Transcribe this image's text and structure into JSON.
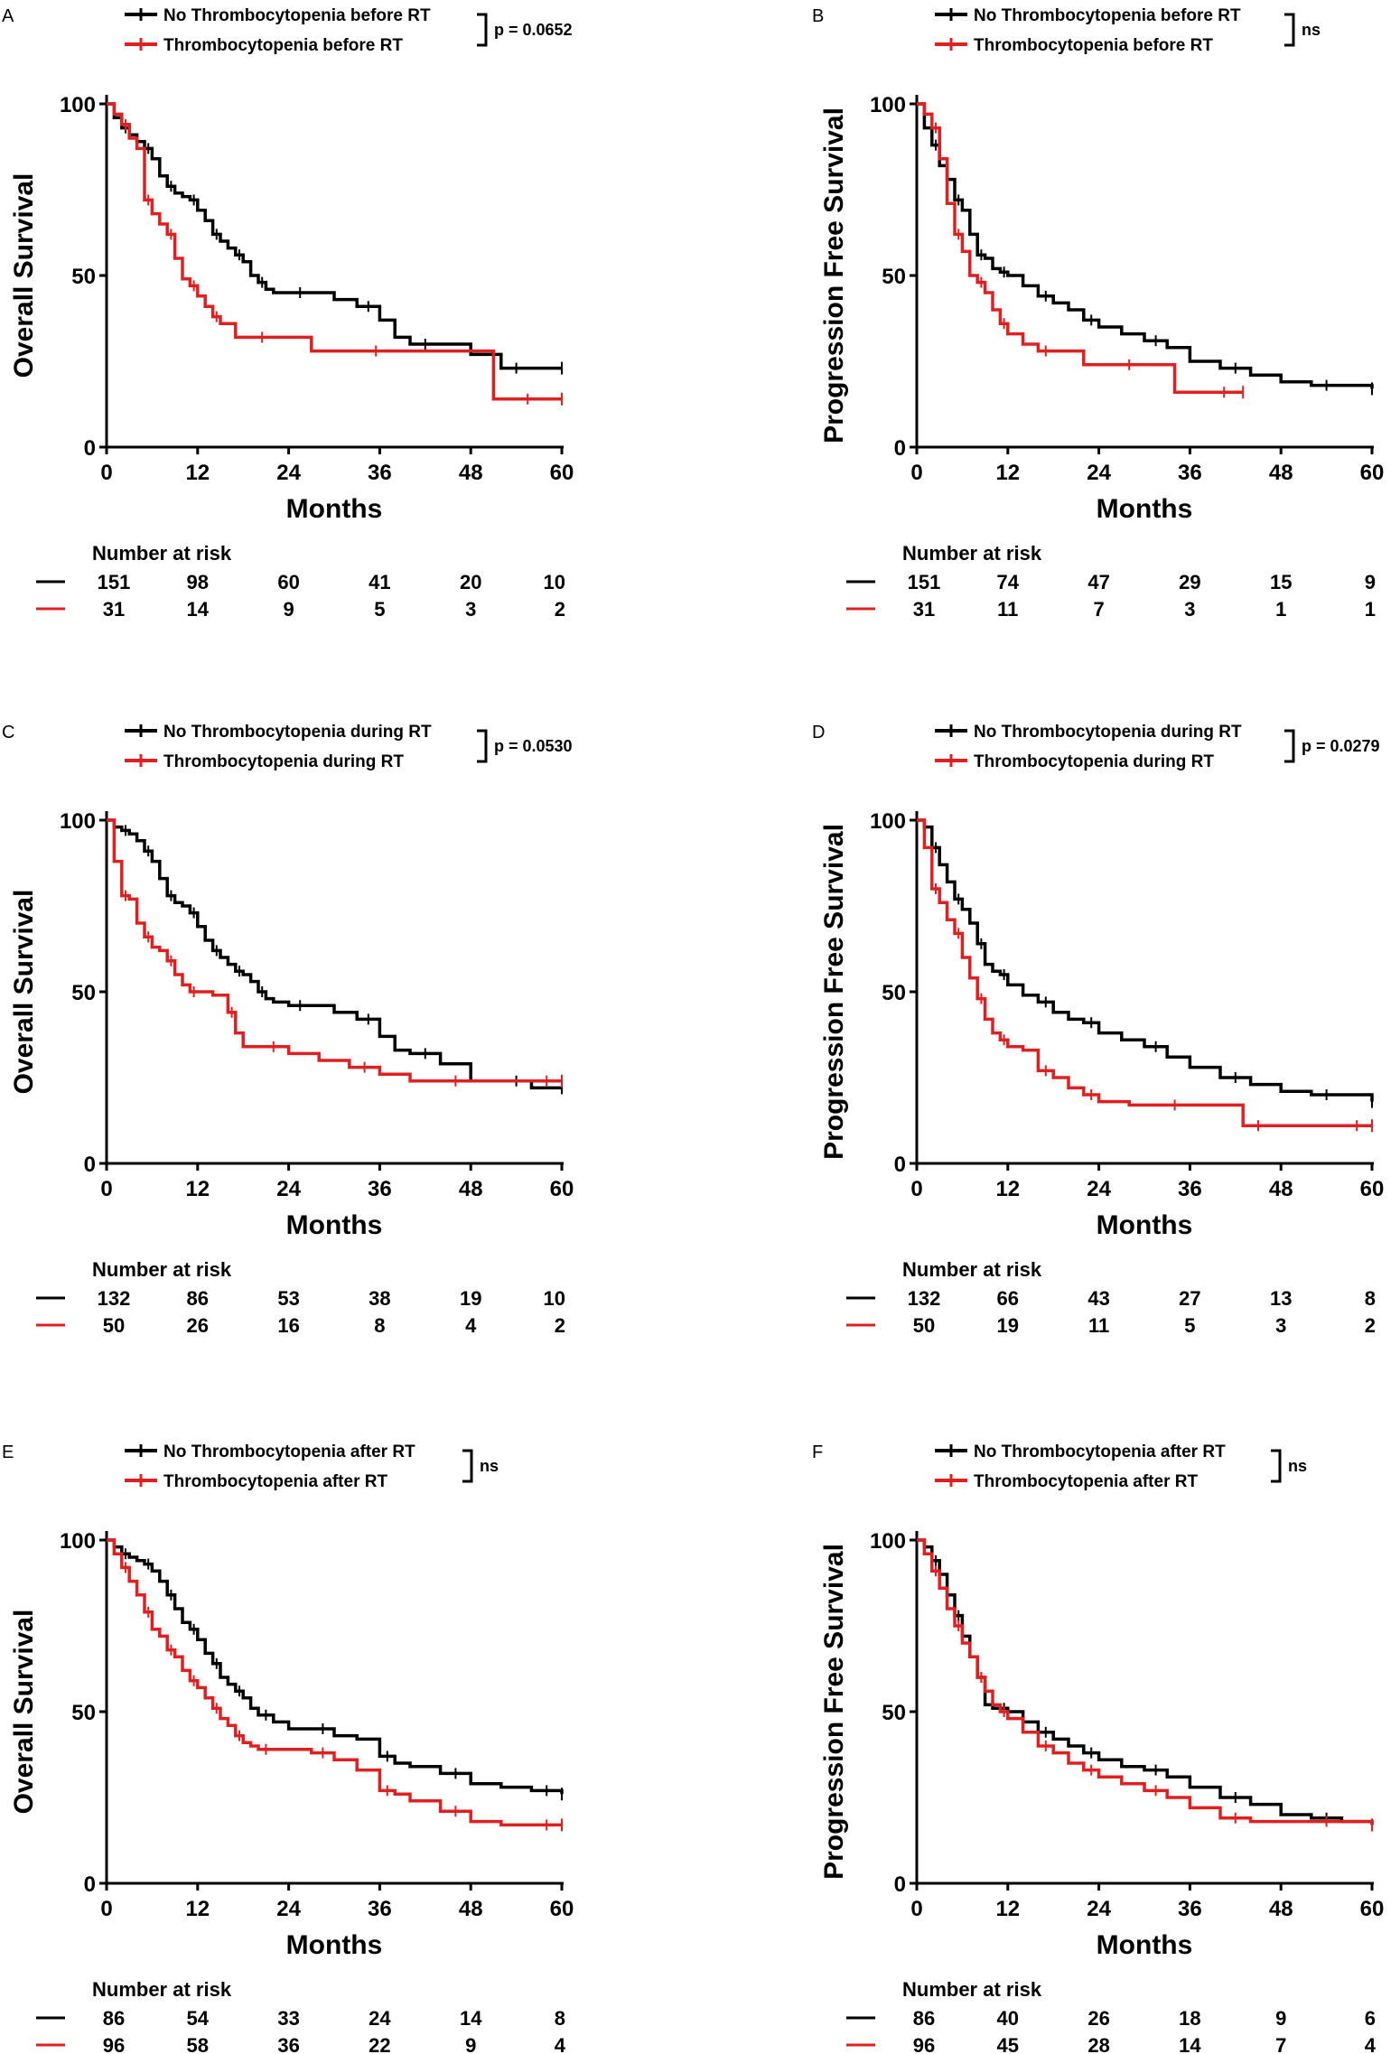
{
  "colors": {
    "no_group": "#000000",
    "group": "#e02020"
  },
  "x_ticks": [
    0,
    12,
    24,
    36,
    48,
    60
  ],
  "y_ticks": [
    0,
    50,
    100
  ],
  "xlabel": "Months",
  "risk_title": "Number at risk",
  "chart_data": [
    {
      "type": "line",
      "panel": "A",
      "ylabel": "Overall Survival",
      "xlim": [
        0,
        60
      ],
      "ylim": [
        0,
        100
      ],
      "legend": [
        "No Thrombocytopenia before RT",
        "Thrombocytopenia before RT"
      ],
      "p_value": "p = 0.0652",
      "series": [
        {
          "name": "No Thrombocytopenia before RT",
          "x": [
            0,
            1,
            2,
            3,
            4,
            5,
            6,
            7,
            8,
            9,
            10,
            11,
            12,
            13,
            14,
            15,
            16,
            17,
            18,
            19,
            20,
            21,
            22,
            24,
            27,
            30,
            33,
            36,
            38,
            40,
            44,
            48,
            52,
            56,
            60
          ],
          "y": [
            100,
            96,
            93,
            91,
            89,
            87,
            84,
            79,
            76,
            74,
            73,
            72,
            69,
            66,
            62,
            60,
            58,
            56,
            54,
            50,
            48,
            46,
            45,
            45,
            45,
            43,
            41,
            37,
            32,
            30,
            30,
            27,
            23,
            23,
            23
          ]
        },
        {
          "name": "Thrombocytopenia before RT",
          "x": [
            0,
            1,
            2,
            3,
            4,
            5,
            6,
            7,
            8,
            9,
            10,
            11,
            12,
            13,
            14,
            15,
            17,
            19,
            22,
            27,
            33,
            38,
            44,
            51,
            60
          ],
          "y": [
            100,
            97,
            94,
            90,
            87,
            72,
            68,
            65,
            62,
            55,
            49,
            47,
            44,
            41,
            38,
            36,
            32,
            32,
            32,
            28,
            28,
            28,
            28,
            14,
            14
          ]
        }
      ],
      "risk": {
        "times": [
          0,
          12,
          24,
          36,
          48,
          60
        ],
        "no_group": [
          151,
          98,
          60,
          41,
          20,
          10
        ],
        "group": [
          31,
          14,
          9,
          5,
          3,
          2
        ]
      }
    },
    {
      "type": "line",
      "panel": "B",
      "ylabel": "Progression Free Survival",
      "xlim": [
        0,
        60
      ],
      "ylim": [
        0,
        100
      ],
      "legend": [
        "No Thrombocytopenia before RT",
        "Thrombocytopenia before RT"
      ],
      "p_value": "ns",
      "series": [
        {
          "name": "No Thrombocytopenia before RT",
          "x": [
            0,
            1,
            2,
            3,
            4,
            5,
            6,
            7,
            8,
            9,
            10,
            11,
            12,
            14,
            16,
            18,
            20,
            22,
            24,
            27,
            30,
            33,
            36,
            40,
            44,
            48,
            52,
            56,
            60
          ],
          "y": [
            100,
            93,
            88,
            82,
            78,
            72,
            69,
            62,
            56,
            55,
            52,
            51,
            50,
            47,
            44,
            42,
            40,
            37,
            35,
            33,
            31,
            29,
            25,
            23,
            21,
            19,
            18,
            18,
            17
          ]
        },
        {
          "name": "Thrombocytopenia before RT",
          "x": [
            0,
            1,
            2,
            3,
            4,
            5,
            6,
            7,
            8,
            9,
            10,
            11,
            12,
            14,
            16,
            18,
            22,
            26,
            30,
            34,
            38,
            43
          ],
          "y": [
            100,
            97,
            93,
            84,
            71,
            62,
            57,
            50,
            48,
            45,
            40,
            36,
            33,
            30,
            28,
            28,
            24,
            24,
            24,
            16,
            16,
            16
          ]
        }
      ],
      "risk": {
        "times": [
          0,
          12,
          24,
          36,
          48,
          60
        ],
        "no_group": [
          151,
          74,
          47,
          29,
          15,
          9
        ],
        "group": [
          31,
          11,
          7,
          3,
          1,
          1
        ]
      }
    },
    {
      "type": "line",
      "panel": "C",
      "ylabel": "Overall Survival",
      "xlim": [
        0,
        60
      ],
      "ylim": [
        0,
        100
      ],
      "legend": [
        "No Thrombocytopenia during RT",
        "Thrombocytopenia during RT"
      ],
      "p_value": "p = 0.0530",
      "series": [
        {
          "name": "No Thrombocytopenia during RT",
          "x": [
            0,
            1,
            2,
            3,
            4,
            5,
            6,
            7,
            8,
            9,
            10,
            11,
            12,
            13,
            14,
            15,
            16,
            17,
            18,
            19,
            20,
            21,
            22,
            24,
            27,
            30,
            33,
            36,
            38,
            40,
            44,
            48,
            52,
            56,
            60
          ],
          "y": [
            100,
            98,
            97,
            96,
            94,
            91,
            88,
            83,
            78,
            76,
            75,
            73,
            69,
            65,
            62,
            60,
            58,
            56,
            55,
            53,
            50,
            48,
            47,
            46,
            46,
            44,
            42,
            37,
            33,
            32,
            29,
            24,
            24,
            22,
            22
          ]
        },
        {
          "name": "Thrombocytopenia during RT",
          "x": [
            0,
            1,
            2,
            3,
            4,
            5,
            6,
            7,
            8,
            9,
            10,
            11,
            12,
            14,
            16,
            17,
            18,
            20,
            24,
            28,
            32,
            36,
            40,
            44,
            48,
            52,
            56,
            60
          ],
          "y": [
            100,
            88,
            78,
            77,
            70,
            66,
            63,
            62,
            59,
            55,
            52,
            50,
            50,
            49,
            44,
            38,
            34,
            34,
            32,
            30,
            28,
            26,
            24,
            24,
            24,
            24,
            24,
            24
          ]
        }
      ],
      "risk": {
        "times": [
          0,
          12,
          24,
          36,
          48,
          60
        ],
        "no_group": [
          132,
          86,
          53,
          38,
          19,
          10
        ],
        "group": [
          50,
          26,
          16,
          8,
          4,
          2
        ]
      }
    },
    {
      "type": "line",
      "panel": "D",
      "ylabel": "Progression Free Survival",
      "xlim": [
        0,
        60
      ],
      "ylim": [
        0,
        100
      ],
      "legend": [
        "No Thrombocytopenia during RT",
        "Thrombocytopenia during RT"
      ],
      "p_value": "p = 0.0279",
      "series": [
        {
          "name": "No Thrombocytopenia during RT",
          "x": [
            0,
            1,
            2,
            3,
            4,
            5,
            6,
            7,
            8,
            9,
            10,
            11,
            12,
            14,
            16,
            18,
            20,
            22,
            24,
            27,
            30,
            33,
            36,
            40,
            44,
            48,
            52,
            56,
            60
          ],
          "y": [
            100,
            98,
            92,
            87,
            82,
            77,
            74,
            70,
            64,
            58,
            56,
            55,
            52,
            49,
            47,
            44,
            42,
            41,
            38,
            36,
            34,
            31,
            28,
            25,
            23,
            21,
            20,
            20,
            18
          ]
        },
        {
          "name": "Thrombocytopenia during RT",
          "x": [
            0,
            1,
            2,
            3,
            4,
            5,
            6,
            7,
            8,
            9,
            10,
            11,
            12,
            14,
            16,
            18,
            20,
            22,
            24,
            28,
            32,
            36,
            40,
            43,
            47,
            52,
            56,
            60
          ],
          "y": [
            100,
            92,
            80,
            76,
            71,
            67,
            60,
            54,
            48,
            42,
            38,
            36,
            34,
            33,
            27,
            25,
            22,
            20,
            18,
            17,
            17,
            17,
            17,
            11,
            11,
            11,
            11,
            11
          ]
        }
      ],
      "risk": {
        "times": [
          0,
          12,
          24,
          36,
          48,
          60
        ],
        "no_group": [
          132,
          66,
          43,
          27,
          13,
          8
        ],
        "group": [
          50,
          19,
          11,
          5,
          3,
          2
        ]
      }
    },
    {
      "type": "line",
      "panel": "E",
      "ylabel": "Overall Survival",
      "xlim": [
        0,
        60
      ],
      "ylim": [
        0,
        100
      ],
      "legend": [
        "No Thrombocytopenia after RT",
        "Thrombocytopenia after RT"
      ],
      "p_value": "ns",
      "series": [
        {
          "name": "No Thrombocytopenia after RT",
          "x": [
            0,
            1,
            2,
            3,
            4,
            5,
            6,
            7,
            8,
            9,
            10,
            11,
            12,
            13,
            14,
            15,
            16,
            17,
            18,
            19,
            20,
            22,
            24,
            27,
            30,
            33,
            36,
            38,
            40,
            44,
            48,
            52,
            56,
            60
          ],
          "y": [
            100,
            98,
            96,
            95,
            94,
            93,
            91,
            88,
            84,
            80,
            76,
            74,
            71,
            67,
            64,
            60,
            58,
            56,
            54,
            51,
            49,
            47,
            45,
            45,
            43,
            42,
            37,
            35,
            34,
            32,
            29,
            28,
            27,
            26
          ]
        },
        {
          "name": "Thrombocytopenia after RT",
          "x": [
            0,
            1,
            2,
            3,
            4,
            5,
            6,
            7,
            8,
            9,
            10,
            11,
            12,
            13,
            14,
            15,
            16,
            17,
            18,
            19,
            20,
            22,
            24,
            27,
            30,
            33,
            36,
            38,
            40,
            44,
            48,
            52,
            56,
            60
          ],
          "y": [
            100,
            96,
            92,
            88,
            84,
            79,
            74,
            72,
            68,
            66,
            62,
            59,
            57,
            54,
            51,
            48,
            46,
            43,
            41,
            40,
            39,
            39,
            39,
            38,
            36,
            33,
            27,
            26,
            24,
            21,
            18,
            17,
            17,
            17
          ]
        }
      ],
      "risk": {
        "times": [
          0,
          12,
          24,
          36,
          48,
          60
        ],
        "no_group": [
          86,
          54,
          33,
          24,
          14,
          8
        ],
        "group": [
          96,
          58,
          36,
          22,
          9,
          4
        ]
      }
    },
    {
      "type": "line",
      "panel": "F",
      "ylabel": "Progression Free Survival",
      "xlim": [
        0,
        60
      ],
      "ylim": [
        0,
        100
      ],
      "legend": [
        "No Thrombocytopenia after RT",
        "Thrombocytopenia after RT"
      ],
      "p_value": "ns",
      "series": [
        {
          "name": "No Thrombocytopenia after RT",
          "x": [
            0,
            1,
            2,
            3,
            4,
            5,
            6,
            7,
            8,
            9,
            10,
            11,
            12,
            14,
            16,
            18,
            20,
            22,
            24,
            27,
            30,
            33,
            36,
            40,
            44,
            48,
            52,
            56,
            60
          ],
          "y": [
            100,
            98,
            94,
            90,
            84,
            78,
            72,
            66,
            60,
            52,
            51,
            51,
            50,
            47,
            44,
            42,
            40,
            38,
            36,
            34,
            33,
            31,
            28,
            25,
            23,
            20,
            19,
            18,
            17
          ]
        },
        {
          "name": "Thrombocytopenia after RT",
          "x": [
            0,
            1,
            2,
            3,
            4,
            5,
            6,
            7,
            8,
            9,
            10,
            11,
            12,
            14,
            16,
            18,
            20,
            22,
            24,
            27,
            30,
            33,
            36,
            40,
            44,
            48,
            52,
            56,
            60
          ],
          "y": [
            100,
            96,
            91,
            86,
            80,
            75,
            70,
            66,
            60,
            56,
            52,
            50,
            48,
            44,
            40,
            38,
            35,
            33,
            31,
            29,
            27,
            25,
            22,
            19,
            18,
            18,
            18,
            18,
            17
          ]
        }
      ],
      "risk": {
        "times": [
          0,
          12,
          24,
          36,
          48,
          60
        ],
        "no_group": [
          86,
          40,
          26,
          18,
          9,
          6
        ],
        "group": [
          96,
          45,
          28,
          14,
          7,
          4
        ]
      }
    }
  ]
}
